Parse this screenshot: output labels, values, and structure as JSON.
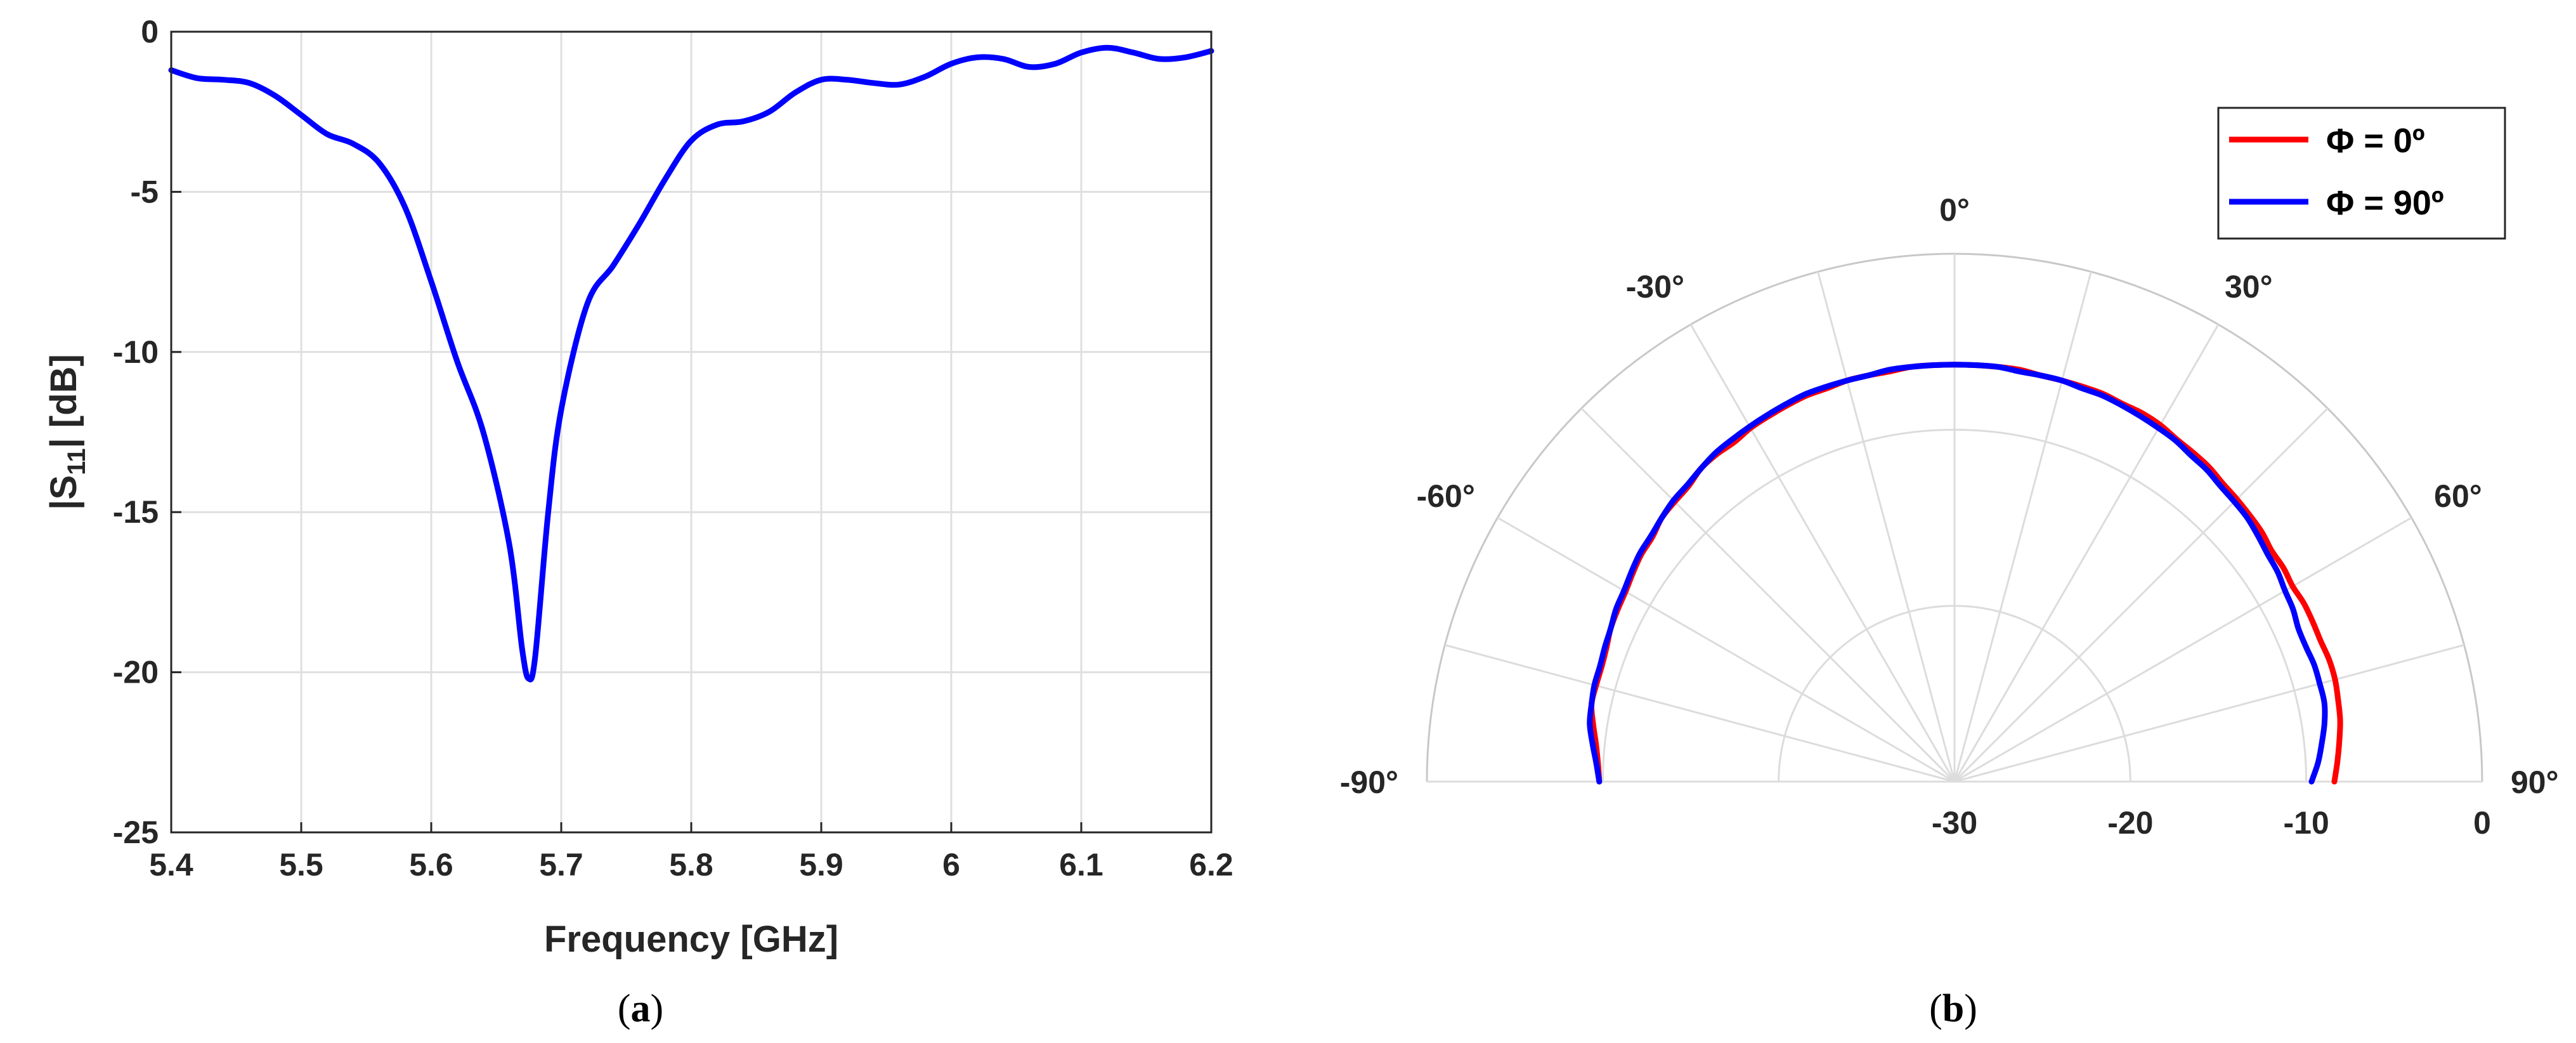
{
  "chart_data": [
    {
      "panel": "a",
      "type": "line",
      "caption": "(a)",
      "caption_letter": "a",
      "xlabel": "Frequency [GHz]",
      "ylabel_main": "|S",
      "ylabel_sub": "11",
      "ylabel_tail": "| [dB]",
      "xlim": [
        5.4,
        6.2
      ],
      "ylim": [
        -25,
        0
      ],
      "xticks": [
        "5.4",
        "5.5",
        "5.6",
        "5.7",
        "5.8",
        "5.9",
        "6",
        "6.1",
        "6.2"
      ],
      "yticks": [
        "0",
        "-5",
        "-10",
        "-15",
        "-20",
        "-25"
      ],
      "grid": true,
      "series": [
        {
          "color": "#0000ff",
          "x": [
            5.4,
            5.42,
            5.44,
            5.46,
            5.48,
            5.5,
            5.52,
            5.54,
            5.56,
            5.58,
            5.6,
            5.62,
            5.64,
            5.66,
            5.67,
            5.675,
            5.68,
            5.69,
            5.7,
            5.72,
            5.74,
            5.76,
            5.78,
            5.8,
            5.82,
            5.84,
            5.86,
            5.88,
            5.9,
            5.92,
            5.94,
            5.96,
            5.98,
            6.0,
            6.02,
            6.04,
            6.06,
            6.08,
            6.1,
            6.12,
            6.14,
            6.16,
            6.18,
            6.2
          ],
          "y": [
            -1.2,
            -1.45,
            -1.5,
            -1.6,
            -2.0,
            -2.6,
            -3.2,
            -3.5,
            -4.1,
            -5.5,
            -7.8,
            -10.3,
            -12.5,
            -16.0,
            -19.3,
            -20.2,
            -19.5,
            -15.0,
            -11.8,
            -8.5,
            -7.3,
            -6.0,
            -4.6,
            -3.4,
            -2.9,
            -2.8,
            -2.5,
            -1.9,
            -1.5,
            -1.5,
            -1.6,
            -1.65,
            -1.4,
            -1.0,
            -0.8,
            -0.85,
            -1.1,
            -1.0,
            -0.65,
            -0.5,
            -0.65,
            -0.85,
            -0.8,
            -0.6
          ]
        }
      ]
    },
    {
      "panel": "b",
      "type": "polar",
      "caption": "(b)",
      "caption_letter": "b",
      "theta_range_deg": [
        -90,
        90
      ],
      "r_range_db": [
        -30,
        0
      ],
      "angle_ticks": [
        "-90°",
        "-60°",
        "-30°",
        "0°",
        "30°",
        "60°",
        "90°"
      ],
      "radial_ticks": [
        "-30",
        "-20",
        "-10",
        "0"
      ],
      "grid": true,
      "legend_position": "top-right",
      "series": [
        {
          "name": "Φ = 0º",
          "color": "#ff0000",
          "theta_deg": [
            -90,
            -87,
            -84,
            -81,
            -78,
            -75,
            -72,
            -69,
            -66,
            -63,
            -60,
            -57,
            -54,
            -51,
            -48,
            -45,
            -42,
            -39,
            -36,
            -33,
            -30,
            -27,
            -24,
            -21,
            -18,
            -15,
            -12,
            -9,
            -6,
            -3,
            0,
            3,
            6,
            9,
            12,
            15,
            18,
            21,
            24,
            27,
            30,
            33,
            36,
            39,
            42,
            45,
            48,
            51,
            54,
            57,
            60,
            63,
            66,
            69,
            72,
            75,
            78,
            81,
            84,
            87,
            90
          ],
          "r_db": [
            -9.8,
            -9.7,
            -9.5,
            -9.2,
            -8.9,
            -8.9,
            -8.9,
            -8.8,
            -8.6,
            -8.5,
            -8.4,
            -8.2,
            -8.0,
            -7.9,
            -7.6,
            -7.5,
            -7.4,
            -7.1,
            -7.0,
            -7.0,
            -6.8,
            -6.7,
            -6.6,
            -6.5,
            -6.5,
            -6.4,
            -6.4,
            -6.4,
            -6.3,
            -6.3,
            -6.3,
            -6.3,
            -6.3,
            -6.3,
            -6.4,
            -6.4,
            -6.4,
            -6.4,
            -6.5,
            -6.5,
            -6.6,
            -6.8,
            -6.9,
            -7.0,
            -7.2,
            -7.3,
            -7.4,
            -7.5,
            -7.7,
            -7.7,
            -7.8,
            -7.7,
            -7.7,
            -7.7,
            -7.6,
            -7.6,
            -7.7,
            -7.8,
            -8.0,
            -8.2,
            -8.4
          ]
        },
        {
          "name": "Φ = 90º",
          "color": "#0000ff",
          "theta_deg": [
            -90,
            -87,
            -84,
            -81,
            -78,
            -75,
            -72,
            -69,
            -66,
            -63,
            -60,
            -57,
            -54,
            -51,
            -48,
            -45,
            -42,
            -39,
            -36,
            -33,
            -30,
            -27,
            -24,
            -21,
            -18,
            -15,
            -12,
            -9,
            -6,
            -3,
            0,
            3,
            6,
            9,
            12,
            15,
            18,
            21,
            24,
            27,
            30,
            33,
            36,
            39,
            42,
            45,
            48,
            51,
            54,
            57,
            60,
            63,
            66,
            69,
            72,
            75,
            78,
            81,
            84,
            87,
            90
          ],
          "r_db": [
            -9.8,
            -9.6,
            -9.3,
            -9.0,
            -8.9,
            -8.8,
            -8.8,
            -8.7,
            -8.6,
            -8.4,
            -8.3,
            -8.1,
            -7.9,
            -7.8,
            -7.6,
            -7.4,
            -7.3,
            -7.1,
            -6.9,
            -6.8,
            -6.7,
            -6.6,
            -6.5,
            -6.4,
            -6.4,
            -6.4,
            -6.4,
            -6.3,
            -6.3,
            -6.3,
            -6.3,
            -6.3,
            -6.3,
            -6.4,
            -6.4,
            -6.4,
            -6.5,
            -6.5,
            -6.6,
            -6.7,
            -6.8,
            -6.9,
            -7.1,
            -7.2,
            -7.4,
            -7.5,
            -7.6,
            -7.8,
            -8.0,
            -8.1,
            -8.3,
            -8.4,
            -8.6,
            -8.6,
            -8.5,
            -8.5,
            -8.5,
            -8.7,
            -9.0,
            -9.3,
            -9.7
          ]
        }
      ]
    }
  ]
}
